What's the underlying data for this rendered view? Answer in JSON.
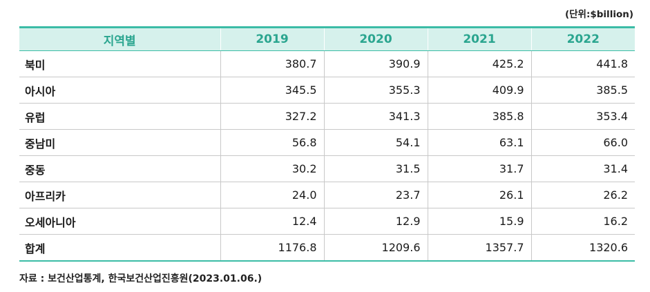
{
  "unit": "(단위:$billion)",
  "table": {
    "headers": [
      "지역별",
      "2019",
      "2020",
      "2021",
      "2022"
    ],
    "rows": [
      {
        "region": "북미",
        "values": [
          "380.7",
          "390.9",
          "425.2",
          "441.8"
        ]
      },
      {
        "region": "아시아",
        "values": [
          "345.5",
          "355.3",
          "409.9",
          "385.5"
        ]
      },
      {
        "region": "유럽",
        "values": [
          "327.2",
          "341.3",
          "385.8",
          "353.4"
        ]
      },
      {
        "region": "중남미",
        "values": [
          "56.8",
          "54.1",
          "63.1",
          "66.0"
        ]
      },
      {
        "region": "중동",
        "values": [
          "30.2",
          "31.5",
          "31.7",
          "31.4"
        ]
      },
      {
        "region": "아프리카",
        "values": [
          "24.0",
          "23.7",
          "26.1",
          "26.2"
        ]
      },
      {
        "region": "오세아니아",
        "values": [
          "12.4",
          "12.9",
          "15.9",
          "16.2"
        ]
      },
      {
        "region": "합계",
        "values": [
          "1176.8",
          "1209.6",
          "1357.7",
          "1320.6"
        ]
      }
    ]
  },
  "source": "자료 : 보건산업통계, 한국보건산업진흥원(2023.01.06.)",
  "colors": {
    "header_bg": "#d6f1ec",
    "header_text": "#2aa58f",
    "accent_line": "#3bbca6"
  }
}
